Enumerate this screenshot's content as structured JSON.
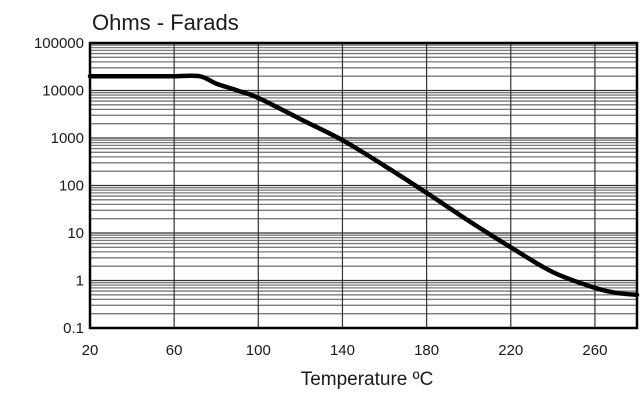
{
  "chart_data": {
    "type": "line",
    "title": "Ohms - Farads",
    "xlabel": "Temperature ºC",
    "ylabel": "",
    "y_scale": "log",
    "xlim": [
      20,
      280
    ],
    "ylim": [
      0.1,
      100000
    ],
    "x_ticks": [
      20,
      60,
      100,
      140,
      180,
      220,
      260
    ],
    "y_ticks": [
      0.1,
      1,
      10,
      100,
      1000,
      10000,
      100000
    ],
    "y_tick_labels": [
      "0.1",
      "1",
      "10",
      "100",
      "1000",
      "10000",
      "100000"
    ],
    "grid": true,
    "legend": "none",
    "series": [
      {
        "x": [
          20,
          40,
          60,
          72,
          80,
          90,
          100,
          120,
          140,
          160,
          180,
          200,
          220,
          240,
          260,
          270,
          280
        ],
        "y": [
          20000,
          20000,
          20000,
          20000,
          14000,
          10000,
          7000,
          2500,
          900,
          260,
          70,
          18,
          5,
          1.5,
          0.7,
          0.55,
          0.5
        ]
      }
    ]
  },
  "colors": {
    "line": "#000000",
    "grid": "#333333",
    "frame": "#000000"
  }
}
